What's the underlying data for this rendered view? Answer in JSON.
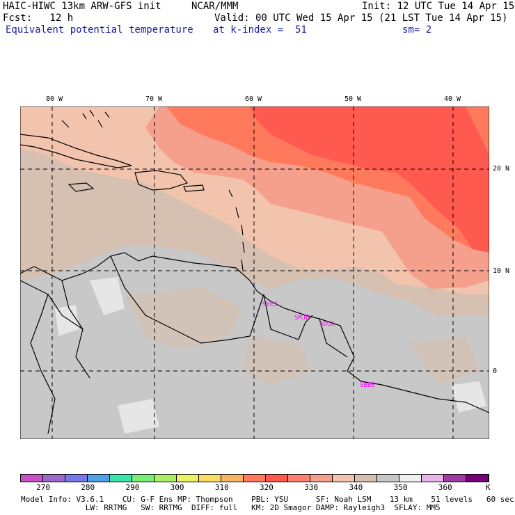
{
  "header": {
    "model": "HAIC-HIWC 13km ARW-GFS init",
    "org": "NCAR/MMM",
    "init": "Init: 12 UTC Tue 14 Apr 15",
    "fcst": "Fcst:   12 h",
    "valid": "Valid: 00 UTC Wed 15 Apr 15 (21 LST Tue 14 Apr 15)",
    "field": "Equivalent potential temperature",
    "level": "at k-index =  51",
    "smooth": "sm= 2"
  },
  "map": {
    "lon_labels": [
      "80 W",
      "70 W",
      "60 W",
      "50 W",
      "40 W"
    ],
    "lat_labels": [
      "20 N",
      "10 N",
      "0"
    ],
    "stations": [
      "SYEJ",
      "SMJP",
      "SOCA",
      "SBBE"
    ],
    "colors": {
      "warm_core": "#ff5a50",
      "warm": "#ff7a5c",
      "salmon": "#f4a08c",
      "peach": "#f2c4ae",
      "tan": "#d6c0b2",
      "grey": "#c8c8c8",
      "light": "#e6e6e6",
      "coast": "#000000",
      "station": "#ff00ff"
    }
  },
  "colorbar": {
    "unit": "K",
    "labels": [
      "270",
      "280",
      "290",
      "300",
      "310",
      "320",
      "330",
      "340",
      "350",
      "360"
    ],
    "colors": [
      "#c850c8",
      "#9a6ac8",
      "#7a78e6",
      "#50a0e6",
      "#3ce6aa",
      "#78ee78",
      "#aaf064",
      "#ecf064",
      "#f8dc64",
      "#f8b464",
      "#ff7a5c",
      "#ff5a50",
      "#ff8070",
      "#f4a08c",
      "#f2c4ae",
      "#d6c0b2",
      "#c8c8c8",
      "#f0f0f0",
      "#e6b4e6",
      "#a03ca0",
      "#780078"
    ]
  },
  "footer": {
    "line1": "Model Info: V3.6.1    CU: G-F Ens MP: Thompson    PBL: YSU      SF: Noah LSM    13 km    51 levels   60 sec",
    "line2": "              LW: RRTMG   SW: RRTMG  DIFF: full   KM: 2D Smagor DAMP: Rayleigh3  SFLAY: MM5"
  }
}
